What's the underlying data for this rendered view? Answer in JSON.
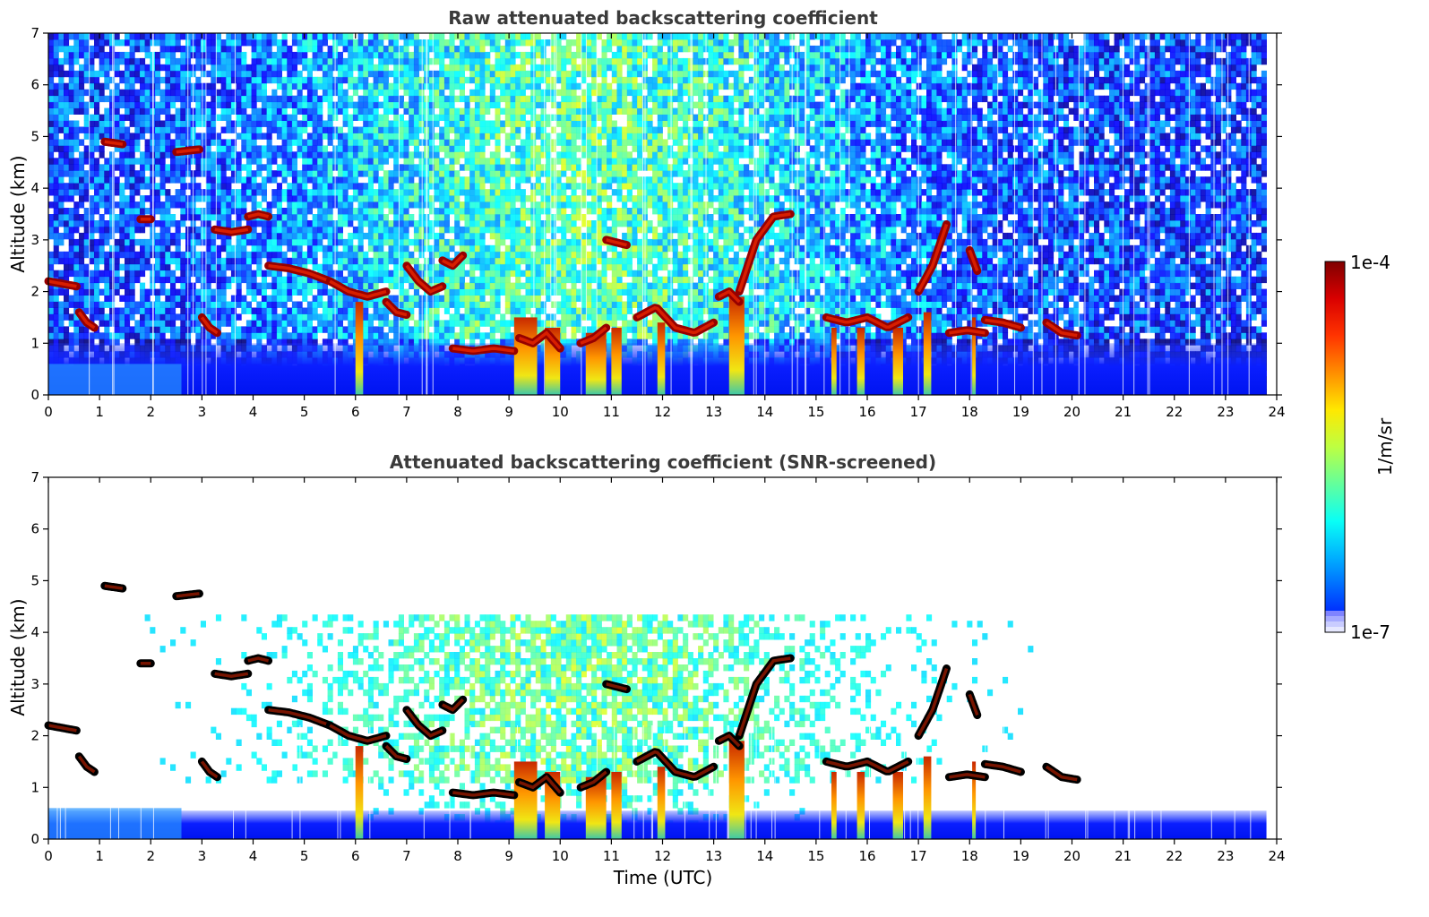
{
  "chart_data": [
    {
      "type": "heatmap",
      "title": "Raw attenuated backscattering coefficient",
      "xlabel": "",
      "ylabel": "Altitude (km)",
      "xlim": [
        0,
        24
      ],
      "ylim": [
        0,
        7
      ],
      "x_ticks": [
        "0",
        "1",
        "2",
        "3",
        "4",
        "5",
        "6",
        "7",
        "8",
        "9",
        "10",
        "11",
        "12",
        "13",
        "14",
        "15",
        "16",
        "17",
        "18",
        "19",
        "20",
        "21",
        "22",
        "23",
        "24"
      ],
      "y_ticks": [
        "0",
        "1",
        "2",
        "3",
        "4",
        "5",
        "6",
        "7"
      ],
      "data_end_time": 23.8,
      "cloud_layers": [
        {
          "t0": 0.0,
          "t1": 0.55,
          "alt": [
            2.2,
            2.15,
            2.1
          ]
        },
        {
          "t0": 0.6,
          "t1": 0.9,
          "alt": [
            1.6,
            1.4,
            1.3
          ]
        },
        {
          "t0": 1.1,
          "t1": 1.45,
          "alt": [
            4.9,
            4.85
          ]
        },
        {
          "t0": 1.8,
          "t1": 2.0,
          "alt": [
            3.4,
            3.4
          ]
        },
        {
          "t0": 2.5,
          "t1": 2.95,
          "alt": [
            4.7,
            4.75
          ]
        },
        {
          "t0": 3.0,
          "t1": 3.3,
          "alt": [
            1.5,
            1.3,
            1.2
          ]
        },
        {
          "t0": 3.25,
          "t1": 3.9,
          "alt": [
            3.2,
            3.15,
            3.2
          ]
        },
        {
          "t0": 3.9,
          "t1": 4.3,
          "alt": [
            3.45,
            3.5,
            3.45
          ]
        },
        {
          "t0": 4.3,
          "t1": 5.5,
          "alt": [
            2.5,
            2.45,
            2.35,
            2.2
          ]
        },
        {
          "t0": 5.5,
          "t1": 6.6,
          "alt": [
            2.2,
            2.0,
            1.9,
            2.0
          ]
        },
        {
          "t0": 6.6,
          "t1": 7.0,
          "alt": [
            1.8,
            1.6,
            1.55
          ]
        },
        {
          "t0": 7.0,
          "t1": 7.7,
          "alt": [
            2.5,
            2.2,
            2.0,
            2.1
          ]
        },
        {
          "t0": 7.7,
          "t1": 8.1,
          "alt": [
            2.6,
            2.5,
            2.7
          ]
        },
        {
          "t0": 7.9,
          "t1": 9.1,
          "alt": [
            0.9,
            0.85,
            0.9,
            0.85
          ]
        },
        {
          "t0": 9.2,
          "t1": 10.0,
          "alt": [
            1.1,
            1.0,
            1.2,
            0.9
          ]
        },
        {
          "t0": 10.4,
          "t1": 10.9,
          "alt": [
            1.0,
            1.1,
            1.3
          ]
        },
        {
          "t0": 10.9,
          "t1": 11.3,
          "alt": [
            3.0,
            2.9
          ]
        },
        {
          "t0": 11.5,
          "t1": 13.0,
          "alt": [
            1.5,
            1.7,
            1.3,
            1.2,
            1.4
          ]
        },
        {
          "t0": 13.1,
          "t1": 13.5,
          "alt": [
            1.9,
            2.0,
            1.8
          ]
        },
        {
          "t0": 13.5,
          "t1": 14.5,
          "alt": [
            2.0,
            3.0,
            3.45,
            3.5
          ]
        },
        {
          "t0": 15.2,
          "t1": 16.8,
          "alt": [
            1.5,
            1.4,
            1.5,
            1.3,
            1.5
          ]
        },
        {
          "t0": 17.0,
          "t1": 17.55,
          "alt": [
            2.0,
            2.5,
            3.3
          ]
        },
        {
          "t0": 18.0,
          "t1": 18.15,
          "alt": [
            2.8,
            2.4
          ]
        },
        {
          "t0": 17.6,
          "t1": 18.3,
          "alt": [
            1.2,
            1.25,
            1.2
          ]
        },
        {
          "t0": 18.3,
          "t1": 19.0,
          "alt": [
            1.45,
            1.4,
            1.3
          ]
        },
        {
          "t0": 19.5,
          "t1": 20.1,
          "alt": [
            1.4,
            1.2,
            1.15
          ]
        }
      ],
      "precip_columns": [
        {
          "t0": 6.0,
          "t1": 6.15,
          "top": 1.8
        },
        {
          "t0": 9.1,
          "t1": 9.55,
          "top": 1.5
        },
        {
          "t0": 9.7,
          "t1": 10.0,
          "top": 1.3
        },
        {
          "t0": 10.5,
          "t1": 10.9,
          "top": 1.2
        },
        {
          "t0": 11.0,
          "t1": 11.2,
          "top": 1.3
        },
        {
          "t0": 11.9,
          "t1": 12.05,
          "top": 1.4
        },
        {
          "t0": 13.3,
          "t1": 13.6,
          "top": 1.9
        },
        {
          "t0": 15.3,
          "t1": 15.4,
          "top": 1.3
        },
        {
          "t0": 15.8,
          "t1": 15.95,
          "top": 1.3
        },
        {
          "t0": 16.5,
          "t1": 16.7,
          "top": 1.3
        },
        {
          "t0": 17.1,
          "t1": 17.25,
          "top": 1.6
        },
        {
          "t0": 18.05,
          "t1": 18.12,
          "top": 1.5
        }
      ]
    },
    {
      "type": "heatmap",
      "title": "Attenuated backscattering coefficient (SNR-screened)",
      "xlabel": "Time (UTC)",
      "ylabel": "Altitude (km)",
      "xlim": [
        0,
        24
      ],
      "ylim": [
        0,
        7
      ],
      "x_ticks": [
        "0",
        "1",
        "2",
        "3",
        "4",
        "5",
        "6",
        "7",
        "8",
        "9",
        "10",
        "11",
        "12",
        "13",
        "14",
        "15",
        "16",
        "17",
        "18",
        "19",
        "20",
        "21",
        "22",
        "23",
        "24"
      ],
      "y_ticks": [
        "0",
        "1",
        "2",
        "3",
        "4",
        "5",
        "6",
        "7"
      ],
      "screened": true
    }
  ],
  "colorbar": {
    "label": "1/m/sr",
    "max_label": "1e-4",
    "min_label": "1e-7",
    "scale": "log",
    "colormap": "jet",
    "min": 1e-07,
    "max": 0.0001
  }
}
